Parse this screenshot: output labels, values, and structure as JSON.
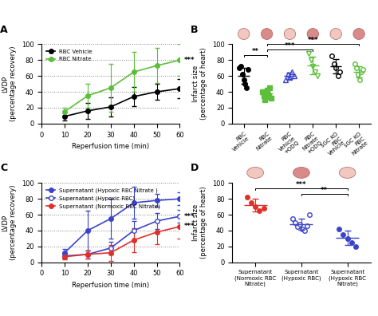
{
  "chart_data": [
    {
      "panel": "A",
      "type": "line",
      "x": [
        10,
        20,
        30,
        40,
        50,
        60
      ],
      "xlim": [
        0,
        60
      ],
      "xticks": [
        0,
        10,
        20,
        30,
        40,
        50,
        60
      ],
      "ylim": [
        0,
        100
      ],
      "yticks": [
        0,
        20,
        40,
        60,
        80,
        100
      ],
      "x_label": "Reperfusion time (min)",
      "y_label": "LVDP\n(percentage recovery)",
      "grid": "y",
      "legend": "upper left",
      "series": [
        {
          "name": "RBC Vehicle",
          "color": "#000000",
          "marker": "circle",
          "values": [
            9,
            16,
            21,
            34,
            40,
            44
          ],
          "errors": [
            5,
            10,
            12,
            12,
            10,
            12
          ]
        },
        {
          "name": "RBC Nitrate",
          "color": "#5cbf3a",
          "marker": "circle",
          "values": [
            15,
            35,
            45,
            65,
            73,
            80
          ],
          "errors": [
            5,
            15,
            30,
            25,
            22,
            20
          ],
          "significance": "***"
        }
      ]
    },
    {
      "panel": "B",
      "type": "dot",
      "categories": [
        "RBC\nVehicle",
        "RBC\nNitrate",
        "RBC\nVehicle\n+ODQ",
        "RBC\nNitrate\n+ODQ",
        "sGC KO\nRBC\nVehicle",
        "sGC KO\nRBC\nNitrate"
      ],
      "ylim": [
        0,
        100
      ],
      "yticks": [
        0,
        20,
        40,
        60,
        80,
        100
      ],
      "y_label": "Infarct size\n(percentage of heart)",
      "colors": [
        "#000000",
        "#5cbf3a",
        "#3b44c8",
        "#5cbf3a",
        "#000000",
        "#5cbf3a"
      ],
      "markers": [
        "circle",
        "square",
        "open_triangle",
        "open_triangle_down",
        "open_circle",
        "open_circle"
      ],
      "points": [
        [
          70,
          72,
          62,
          55,
          50,
          45,
          68
        ],
        [
          40,
          35,
          30,
          38,
          42,
          36,
          34,
          45,
          32
        ],
        [
          55,
          62,
          58,
          65,
          60
        ],
        [
          88,
          80,
          72,
          65,
          60
        ],
        [
          85,
          75,
          70,
          60,
          65
        ],
        [
          75,
          70,
          62,
          55,
          65,
          68
        ]
      ],
      "means": [
        60,
        38,
        60,
        73,
        72,
        65
      ],
      "errors": [
        10,
        5,
        4,
        11,
        9,
        7
      ],
      "comparisons": [
        {
          "between": [
            0,
            1
          ],
          "label": "**"
        },
        {
          "between": [
            1,
            3
          ],
          "label": "***"
        },
        {
          "between": [
            1,
            5
          ],
          "label": "***"
        }
      ]
    },
    {
      "panel": "C",
      "type": "line",
      "x": [
        10,
        20,
        30,
        40,
        50,
        60
      ],
      "xlim": [
        0,
        60
      ],
      "xticks": [
        0,
        10,
        20,
        30,
        40,
        50,
        60
      ],
      "ylim": [
        0,
        100
      ],
      "yticks": [
        0,
        20,
        40,
        60,
        80,
        100
      ],
      "x_label": "Reperfusion time (min)",
      "y_label": "LVDP\n(percentage recovery)",
      "grid": "y",
      "legend": "upper left",
      "series": [
        {
          "name": "Supernatant (Hypoxic RBC Nitrate )",
          "color": "#3b44c8",
          "marker": "circle",
          "values": [
            12,
            40,
            55,
            75,
            78,
            80
          ],
          "errors": [
            5,
            25,
            25,
            20,
            8,
            8
          ]
        },
        {
          "name": "Supernatant (Hypoxic RBC)",
          "color": "#3b44c8",
          "marker": "open_circle",
          "values": [
            8,
            10,
            18,
            40,
            52,
            58
          ],
          "errors": [
            3,
            5,
            8,
            12,
            10,
            8
          ],
          "significance": "***"
        },
        {
          "name": "Supernatant (Normoxic RBC Nitrate)",
          "color": "#e0302a",
          "marker": "circle",
          "values": [
            7,
            10,
            12,
            28,
            38,
            45
          ],
          "errors": [
            3,
            5,
            10,
            15,
            15,
            15
          ],
          "significance": "***"
        }
      ]
    },
    {
      "panel": "D",
      "type": "dot",
      "categories": [
        "Supernatant\n(Normoxic RBC\nNitrate)",
        "Supernatant\n(Hypoxic RBC)",
        "Supernatant\n(Hypoxic RBC\nNitrate)"
      ],
      "ylim": [
        0,
        100
      ],
      "yticks": [
        0,
        20,
        40,
        60,
        80,
        100
      ],
      "y_label": "Infarct size\n(percentage of heart)",
      "colors": [
        "#e0302a",
        "#3b44c8",
        "#3b44c8"
      ],
      "markers": [
        "circle",
        "open_circle",
        "circle"
      ],
      "points": [
        [
          82,
          75,
          70,
          65,
          68
        ],
        [
          55,
          50,
          45,
          48,
          42,
          40,
          46,
          60
        ],
        [
          42,
          35,
          30,
          25,
          20
        ]
      ],
      "means": [
        72,
        48,
        31
      ],
      "errors": [
        8,
        7,
        9
      ],
      "comparisons": [
        {
          "between": [
            1,
            2
          ],
          "label": "**"
        },
        {
          "between": [
            0,
            2
          ],
          "label": "***"
        }
      ]
    }
  ]
}
